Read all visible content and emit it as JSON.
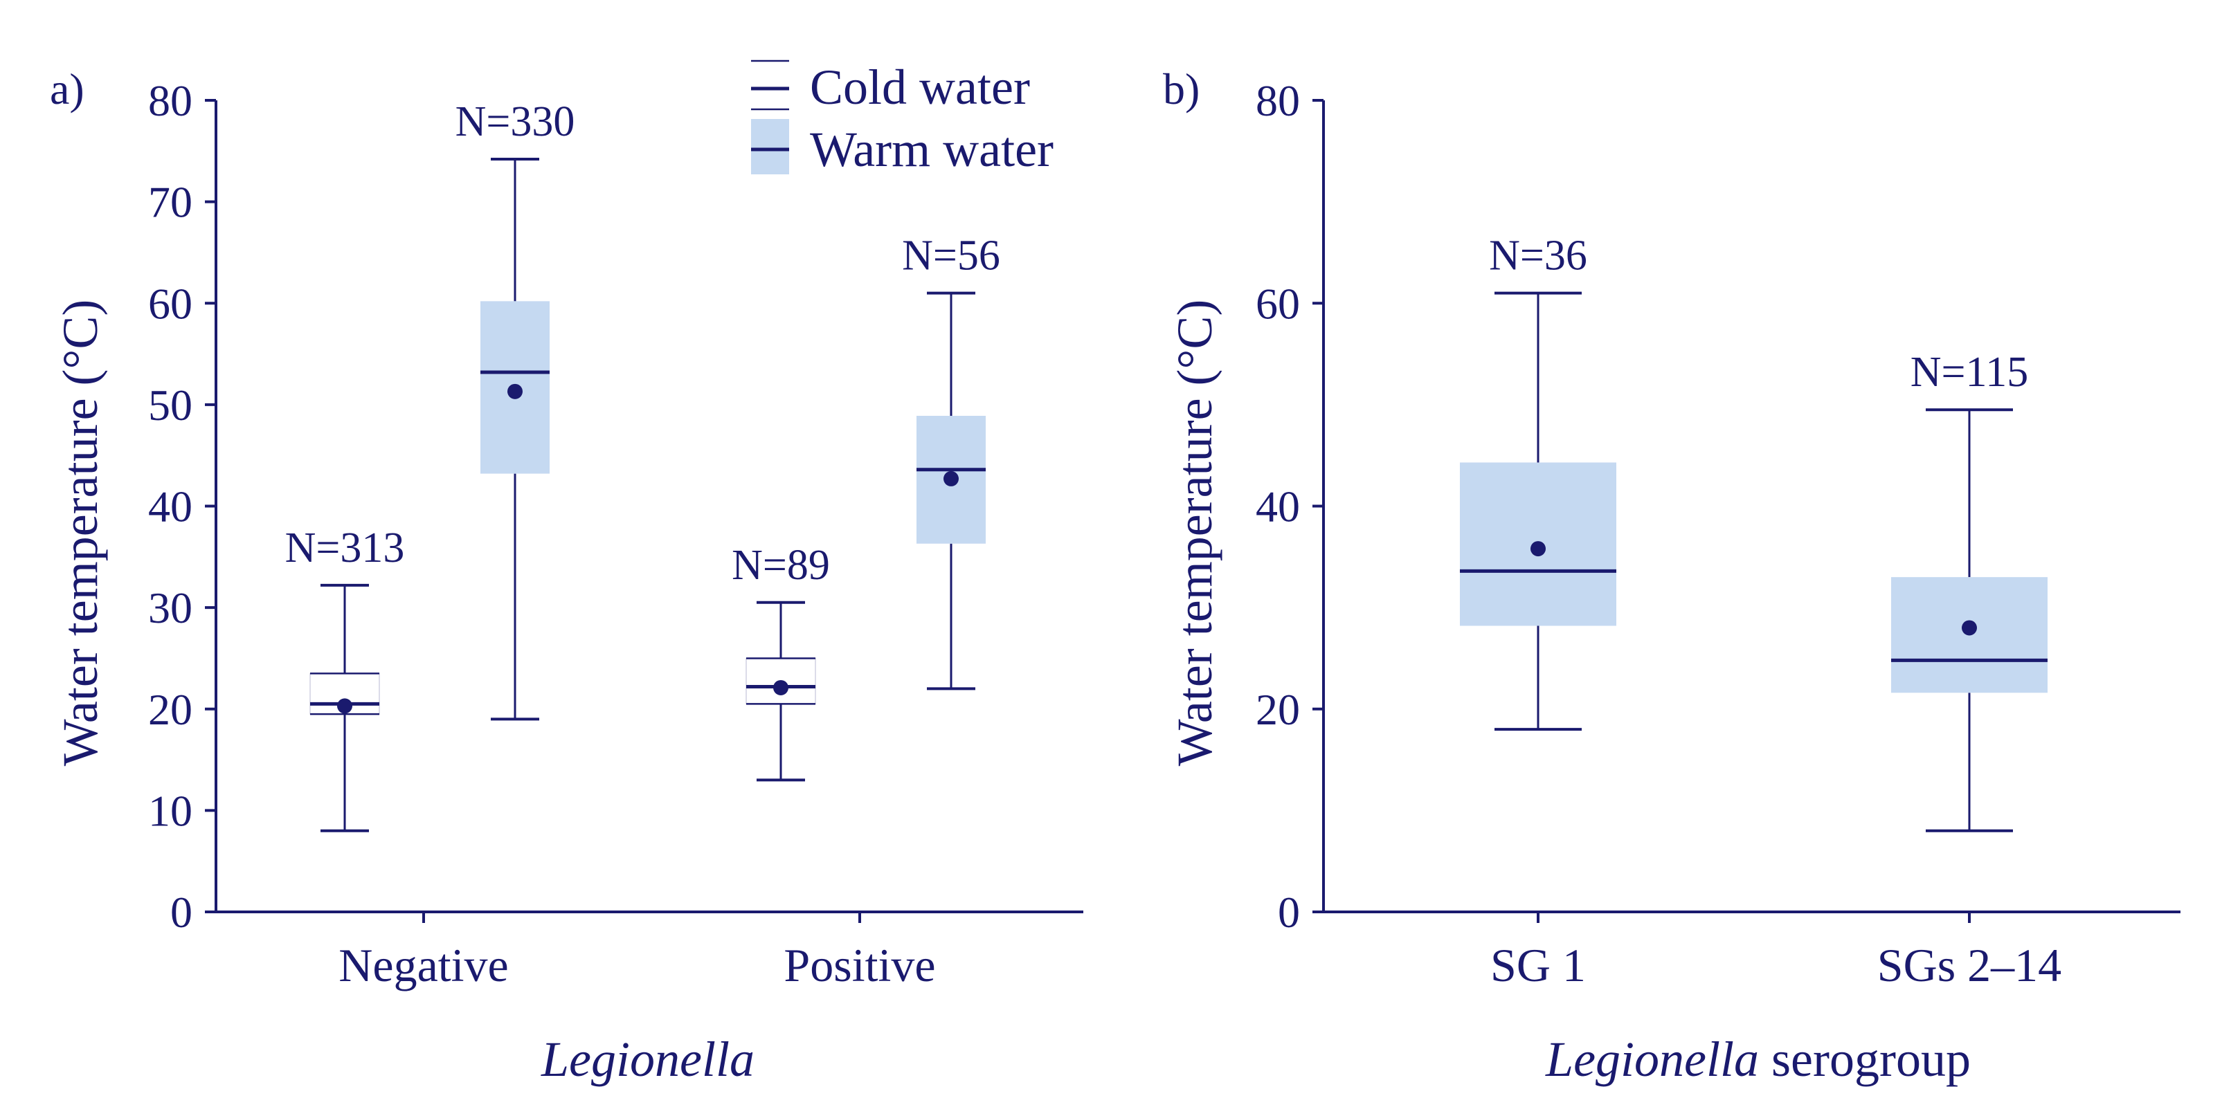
{
  "colors": {
    "ink": "#1a1a6e",
    "warm_fill": "#c5d9f1"
  },
  "legend": {
    "cold_label": "Cold water",
    "warm_label": "Warm water"
  },
  "chart_data": [
    {
      "panel": "a)",
      "type": "box",
      "title": "",
      "xlabel": "Legionella",
      "ylabel": "Water temperature (°C)",
      "ylim": [
        0,
        80
      ],
      "yticks": [
        0,
        10,
        20,
        30,
        40,
        50,
        60,
        70,
        80
      ],
      "categories": [
        "Negative",
        "Positive"
      ],
      "series": [
        {
          "name": "Cold water",
          "boxes": [
            {
              "category": "Negative",
              "n_label": "N=313",
              "min": 8,
              "q1": 19.5,
              "median": 20.5,
              "q3": 23.5,
              "max": 32.2,
              "mean": 20.3
            },
            {
              "category": "Positive",
              "n_label": "N=89",
              "min": 13,
              "q1": 20.5,
              "median": 22.2,
              "q3": 25,
              "max": 30.5,
              "mean": 22.1
            }
          ]
        },
        {
          "name": "Warm water",
          "boxes": [
            {
              "category": "Negative",
              "n_label": "N=330",
              "min": 19,
              "q1": 43.2,
              "median": 53.2,
              "q3": 60.2,
              "max": 74.2,
              "mean": 51.3
            },
            {
              "category": "Positive",
              "n_label": "N=56",
              "min": 22,
              "q1": 36.3,
              "median": 43.6,
              "q3": 48.9,
              "max": 61,
              "mean": 42.7
            }
          ]
        }
      ]
    },
    {
      "panel": "b)",
      "type": "box",
      "title": "",
      "xlabel_italic": "Legionella",
      "xlabel_rest": " serogroup",
      "ylabel": "Water temperature (°C)",
      "ylim": [
        0,
        80
      ],
      "yticks": [
        0,
        20,
        40,
        60,
        80
      ],
      "categories": [
        "SG 1",
        "SGs 2–14"
      ],
      "series": [
        {
          "name": "Warm water",
          "boxes": [
            {
              "category": "SG 1",
              "n_label": "N=36",
              "min": 18,
              "q1": 28.2,
              "median": 33.6,
              "q3": 44.3,
              "max": 61,
              "mean": 35.8
            },
            {
              "category": "SGs 2–14",
              "n_label": "N=115",
              "min": 8,
              "q1": 21.6,
              "median": 24.8,
              "q3": 33,
              "max": 49.5,
              "mean": 28
            }
          ]
        }
      ]
    }
  ]
}
